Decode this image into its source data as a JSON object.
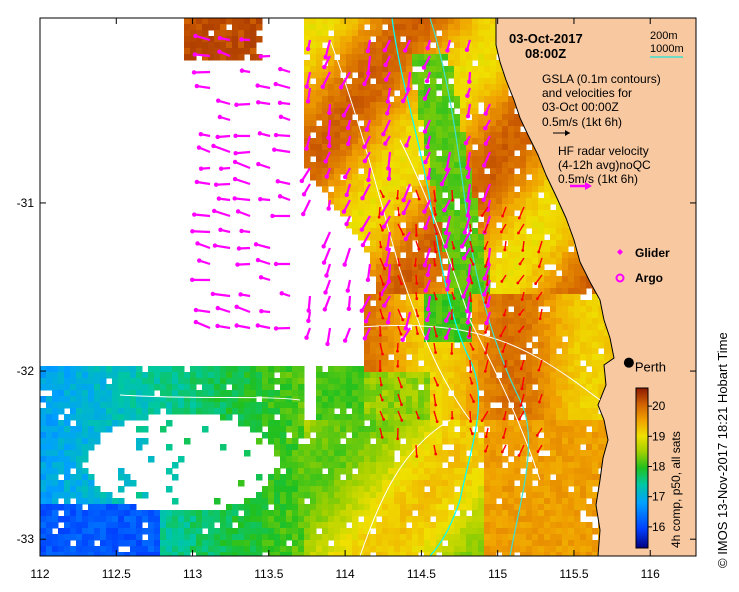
{
  "colors": {
    "land": "#f8c8a0",
    "frame": "#000000",
    "hf_arrow": "#ff00ff",
    "gsla_arrow": "#ff0000",
    "contour": "#ffffff",
    "isobath_200": "#00ffff",
    "isobath_1000": "#40e0d0",
    "glider": "#ff00ff",
    "argo": "#ff00ff"
  },
  "map": {
    "lon_range": [
      112,
      116.3
    ],
    "lat_range": [
      -33.1,
      -29.9
    ],
    "x_ticks": [
      {
        "value": 112,
        "label": "112"
      },
      {
        "value": 112.5,
        "label": "112.5"
      },
      {
        "value": 113,
        "label": "113"
      },
      {
        "value": 113.5,
        "label": "113.5"
      },
      {
        "value": 114,
        "label": "114"
      },
      {
        "value": 114.5,
        "label": "114.5"
      },
      {
        "value": 115,
        "label": "115"
      },
      {
        "value": 115.5,
        "label": "115.5"
      },
      {
        "value": 116,
        "label": "116"
      }
    ],
    "y_ticks": [
      {
        "value": -31,
        "label": "-31"
      },
      {
        "value": -32,
        "label": "-32"
      },
      {
        "value": -33,
        "label": "-33"
      }
    ]
  },
  "header": {
    "date": "03-Oct-2017",
    "time": "08:00Z"
  },
  "isobath_legend": {
    "line1": "200m",
    "line2": "1000m"
  },
  "gsla_legend": {
    "line1": "GSLA (0.1m contours)",
    "line2": "and velocities for",
    "line3": "03-Oct 00:00Z",
    "scale": "0.5m/s (1kt 6h)"
  },
  "hf_legend": {
    "line1": "HF radar velocity",
    "line2": "(4-12h avg)noQC",
    "scale": "0.5m/s (1kt 6h)"
  },
  "symbols": {
    "glider": "Glider",
    "argo": "Argo"
  },
  "city": {
    "name": "Perth",
    "lon": 115.86,
    "lat": -31.95
  },
  "colorbar": {
    "label": "4h comp, p50, all sats",
    "range": [
      15.3,
      20.6
    ],
    "ticks": [
      {
        "value": 16,
        "label": "16"
      },
      {
        "value": 17,
        "label": "17"
      },
      {
        "value": 18,
        "label": "18"
      },
      {
        "value": 19,
        "label": "19"
      },
      {
        "value": 20,
        "label": "20"
      }
    ]
  },
  "credit": "©  IMOS 13-Nov-2017 18:21 Hobart Time"
}
